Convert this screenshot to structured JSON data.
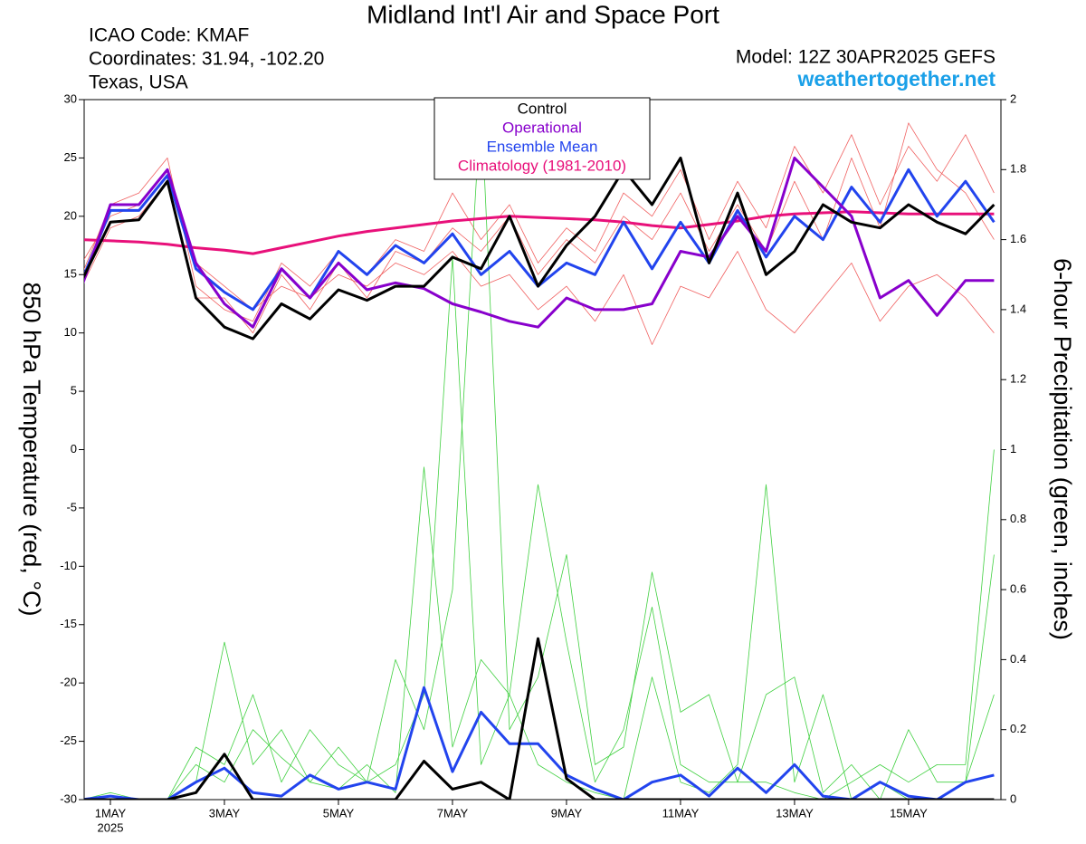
{
  "header": {
    "icao": "ICAO Code: KMAF",
    "coordinates": "Coordinates: 31.94, -102.20",
    "region": "Texas, USA",
    "model": "Model: 12Z 30APR2025 GEFS",
    "site": "weathertogether.net"
  },
  "chart_data": {
    "type": "line",
    "title": "Midland Int'l Air and Space Port",
    "y_label": "850 hPa Temperature (red, °C)",
    "y2_label": "6-hour Precipitation (green, inches)",
    "x": [
      0.5,
      1,
      1.5,
      2,
      2.5,
      3,
      3.5,
      4,
      4.5,
      5,
      5.5,
      6,
      6.5,
      7,
      7.5,
      8,
      8.5,
      9,
      9.5,
      10,
      10.5,
      11,
      11.5,
      12,
      12.5,
      13,
      13.5,
      14,
      14.5,
      15,
      15.5,
      16,
      16.5
    ],
    "xlim": [
      0.54,
      16.62
    ],
    "xticks": [
      {
        "value": 1,
        "label": "1MAY"
      },
      {
        "value": 3,
        "label": "3MAY"
      },
      {
        "value": 5,
        "label": "5MAY"
      },
      {
        "value": 7,
        "label": "7MAY"
      },
      {
        "value": 9,
        "label": "9MAY"
      },
      {
        "value": 11,
        "label": "11MAY"
      },
      {
        "value": 13,
        "label": "13MAY"
      },
      {
        "value": 15,
        "label": "15MAY"
      }
    ],
    "xtick_sublabel": "2025",
    "ylim": [
      -30,
      30
    ],
    "yticks": [
      -30,
      -25,
      -20,
      -15,
      -10,
      -5,
      0,
      5,
      10,
      15,
      20,
      25,
      30
    ],
    "y2lim": [
      0,
      2
    ],
    "y2ticks": [
      0,
      0.2,
      0.4,
      0.6,
      0.8,
      1,
      1.2,
      1.4,
      1.6,
      1.8,
      2
    ],
    "series": [
      {
        "color": "#f06060",
        "values": [
          15,
          21,
          22,
          25,
          14,
          12,
          11,
          16,
          14,
          17,
          15,
          18,
          17,
          22,
          18,
          21,
          16,
          19,
          17,
          22,
          20,
          24,
          18,
          23,
          19,
          26,
          22,
          27,
          21,
          26,
          23,
          27,
          22
        ]
      },
      {
        "color": "#f06060",
        "values": [
          16,
          20,
          21,
          24,
          16,
          14,
          12,
          14,
          13,
          15,
          14,
          16,
          15,
          17,
          14,
          15,
          12,
          14,
          11,
          15,
          9,
          14,
          13,
          17,
          12,
          10,
          13,
          16,
          11,
          14,
          15,
          13,
          10
        ]
      },
      {
        "color": "#f06060",
        "values": [
          14,
          19,
          20,
          23,
          13,
          13,
          10,
          15,
          12,
          16,
          13,
          17,
          16,
          19,
          17,
          20,
          15,
          18,
          16,
          20,
          18,
          22,
          17,
          21,
          17,
          23,
          18,
          25,
          19,
          28,
          24,
          22,
          18
        ]
      },
      {
        "color": "#40d040",
        "axis": "y2",
        "values": [
          0,
          0.01,
          0,
          0,
          0.1,
          0.05,
          0.2,
          0.12,
          0.05,
          0.03,
          0.1,
          0.02,
          0.95,
          0.15,
          0.4,
          0.3,
          0.1,
          0.05,
          0.02,
          0,
          0.35,
          0.05,
          0.02,
          0.1,
          0.9,
          0.05,
          0.3,
          0,
          0.05,
          0,
          0,
          0.05,
          0.3
        ]
      },
      {
        "color": "#40d040",
        "axis": "y2",
        "values": [
          0,
          0,
          0,
          0,
          0.05,
          0.45,
          0.1,
          0.2,
          0.05,
          0.15,
          0.05,
          0.1,
          0.3,
          1.55,
          0.1,
          0.3,
          0.9,
          0.45,
          0.05,
          0.2,
          0.55,
          0.1,
          0.05,
          0.05,
          0.3,
          0.35,
          0.02,
          0.1,
          0,
          0.2,
          0.05,
          0.05,
          0.7
        ]
      },
      {
        "color": "#40d040",
        "axis": "y2",
        "values": [
          0,
          0.02,
          0,
          0,
          0.15,
          0.1,
          0.3,
          0.05,
          0.2,
          0.1,
          0.05,
          0.4,
          0.2,
          0.6,
          2,
          0.2,
          0.35,
          0.7,
          0.1,
          0.15,
          0.65,
          0.25,
          0.3,
          0.05,
          0.05,
          0.02,
          0,
          0.05,
          0.1,
          0.05,
          0.1,
          0.1,
          1
        ]
      },
      {
        "name": "Climatology (1981-2010)",
        "color": "#e8107a",
        "values": [
          18,
          17.9,
          17.8,
          17.6,
          17.3,
          17.1,
          16.8,
          17.3,
          17.8,
          18.3,
          18.7,
          19,
          19.3,
          19.6,
          19.8,
          20,
          19.9,
          19.8,
          19.7,
          19.5,
          19.2,
          19,
          19.3,
          19.6,
          20,
          20.2,
          20.3,
          20.4,
          20.3,
          20.2,
          20.2,
          20.2,
          20.2
        ]
      },
      {
        "name": "Ensemble Mean",
        "color": "#2244ee",
        "values": [
          14.5,
          20.5,
          20.5,
          23.5,
          15.5,
          13.5,
          12,
          15.5,
          13,
          17,
          15,
          17.5,
          16,
          18.5,
          15,
          17,
          14,
          16,
          15,
          19.5,
          15.5,
          19.5,
          16,
          20.5,
          16.5,
          20,
          18,
          22.5,
          19.5,
          24,
          20,
          23,
          19.5
        ]
      },
      {
        "name": "Operational",
        "color": "#8800cc",
        "values": [
          14,
          21,
          21,
          24,
          16,
          12.5,
          10.5,
          15.5,
          13,
          16,
          13.7,
          14.3,
          13.8,
          12.5,
          11.8,
          11,
          10.5,
          13,
          12,
          12,
          12.5,
          17,
          16.5,
          20,
          17,
          25,
          22.5,
          20,
          13,
          14.5,
          11.5,
          14.5,
          14.5
        ]
      },
      {
        "name": "Control",
        "color": "#000000",
        "values": [
          14.5,
          19.5,
          19.7,
          23,
          13,
          10.5,
          9.5,
          12.5,
          11.2,
          13.7,
          12.8,
          14,
          14,
          16.5,
          15.5,
          20,
          14,
          17.5,
          20,
          24,
          21,
          25,
          16,
          22,
          15,
          17,
          21,
          19.5,
          19,
          21,
          19.5,
          18.5,
          21
        ]
      },
      {
        "color": "#2244ee",
        "axis": "y2",
        "values": [
          0,
          0.01,
          0,
          0,
          0.05,
          0.09,
          0.02,
          0.01,
          0.07,
          0.03,
          0.05,
          0.03,
          0.32,
          0.08,
          0.25,
          0.16,
          0.16,
          0.07,
          0.03,
          0,
          0.05,
          0.07,
          0.01,
          0.09,
          0.02,
          0.1,
          0.01,
          0,
          0.05,
          0.01,
          0,
          0.05,
          0.07
        ]
      },
      {
        "color": "#000000",
        "axis": "y2",
        "values": [
          0,
          0,
          0,
          0,
          0.02,
          0.13,
          0,
          0,
          0,
          0,
          0,
          0,
          0.11,
          0.03,
          0.05,
          0,
          0.46,
          0.06,
          0,
          0,
          0,
          0,
          0,
          0,
          0,
          0,
          0,
          0,
          0,
          0,
          0,
          0,
          0
        ]
      }
    ]
  }
}
